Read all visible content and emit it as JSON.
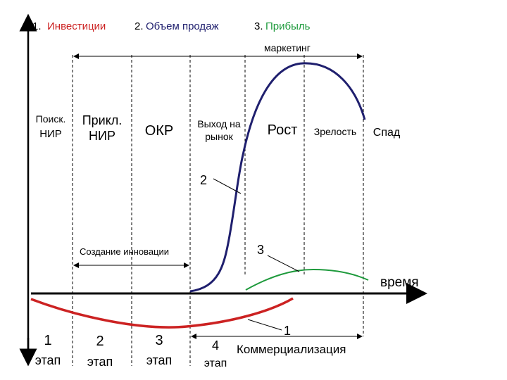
{
  "legend": {
    "item1_num": "1.",
    "item1_label": "Инвестиции",
    "item2_num": "2.",
    "item2_label": "Объем продаж",
    "item3_num": "3.",
    "item3_label": "Прибыль"
  },
  "colors": {
    "investments": "#cc2222",
    "sales": "#1f1f6e",
    "profit": "#1e9a3c",
    "axis": "#000000"
  },
  "marketing_label": "маркетинг",
  "stage_headers": {
    "search_research_1": "Поиск.",
    "search_research_2": "НИР",
    "applied_research_1": "Прикл.",
    "applied_research_2": "НИР",
    "okr": "ОКР",
    "market_entry_1": "Выход на",
    "market_entry_2": "рынок",
    "growth": "Рост",
    "maturity": "Зрелость",
    "decline": "Спад"
  },
  "innovation_label": "Создание инновации",
  "time_label": "время",
  "curve_numbers": {
    "sales": "2",
    "profit": "3",
    "investments": "1"
  },
  "stages": {
    "s1_num": "1",
    "s1_word": "этап",
    "s2_num": "2",
    "s2_word": "этап",
    "s3_num": "3",
    "s3_word": "этап",
    "s4_num": "4",
    "s4_word": "этап"
  },
  "commercialization_label": "Коммерциализация"
}
